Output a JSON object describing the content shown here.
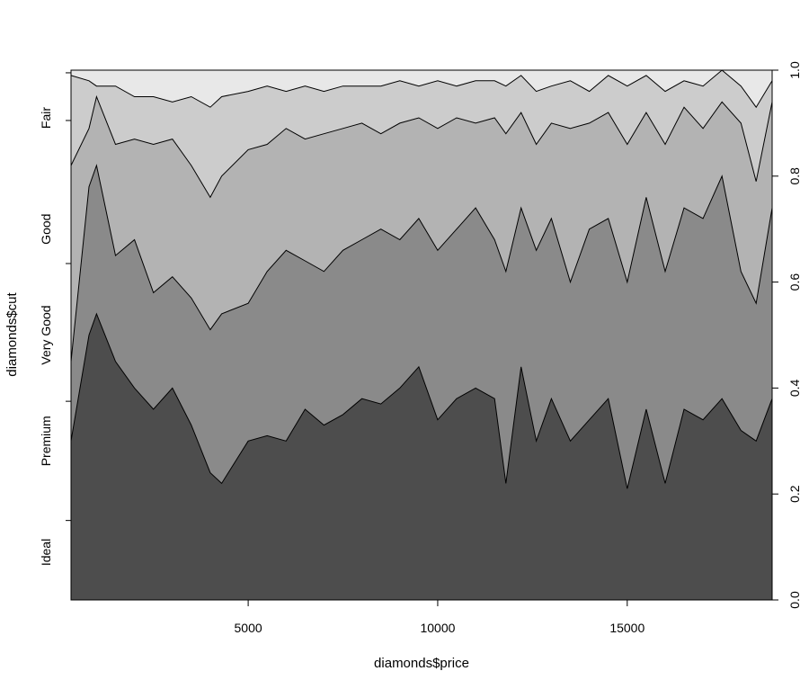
{
  "chart_data": {
    "type": "area",
    "subtype": "conditional-density-stacked",
    "title": "",
    "xlabel": "diamonds$price",
    "ylabel": "diamonds$cut",
    "xlim": [
      326,
      18823
    ],
    "ylim": [
      0,
      1
    ],
    "x_ticks": [
      5000,
      10000,
      15000
    ],
    "y_ticks": [
      0.0,
      0.2,
      0.4,
      0.6,
      0.8,
      1.0
    ],
    "y_tick_labels": [
      "0.0",
      "0.2",
      "0.4",
      "0.6",
      "0.8",
      "1.0"
    ],
    "category_labels": [
      "Ideal",
      "Premium",
      "Very Good",
      "Good",
      "Fair"
    ],
    "grid": false,
    "legend": "none",
    "x": [
      326,
      800,
      1000,
      1500,
      2000,
      2500,
      3000,
      3500,
      4000,
      4300,
      5000,
      5500,
      6000,
      6500,
      7000,
      7500,
      8000,
      8500,
      9000,
      9500,
      10000,
      10500,
      11000,
      11500,
      11800,
      12200,
      12600,
      13000,
      13500,
      14000,
      14500,
      15000,
      15500,
      16000,
      16500,
      17000,
      17500,
      18000,
      18400,
      18823
    ],
    "series": [
      {
        "name": "Ideal",
        "color": "#4d4d4d",
        "values": [
          0.3,
          0.5,
          0.54,
          0.45,
          0.4,
          0.36,
          0.4,
          0.33,
          0.24,
          0.22,
          0.3,
          0.31,
          0.3,
          0.36,
          0.33,
          0.35,
          0.38,
          0.37,
          0.4,
          0.44,
          0.34,
          0.38,
          0.4,
          0.38,
          0.22,
          0.44,
          0.3,
          0.38,
          0.3,
          0.34,
          0.38,
          0.21,
          0.36,
          0.22,
          0.36,
          0.34,
          0.38,
          0.32,
          0.3,
          0.38
        ]
      },
      {
        "name": "Premium",
        "color": "#8a8a8a",
        "values": [
          0.45,
          0.78,
          0.82,
          0.65,
          0.68,
          0.58,
          0.61,
          0.57,
          0.51,
          0.54,
          0.56,
          0.62,
          0.66,
          0.64,
          0.62,
          0.66,
          0.68,
          0.7,
          0.68,
          0.72,
          0.66,
          0.7,
          0.74,
          0.68,
          0.62,
          0.74,
          0.66,
          0.72,
          0.6,
          0.7,
          0.72,
          0.6,
          0.76,
          0.62,
          0.74,
          0.72,
          0.8,
          0.62,
          0.56,
          0.74
        ]
      },
      {
        "name": "Very Good",
        "color": "#b3b3b3",
        "values": [
          0.82,
          0.89,
          0.95,
          0.86,
          0.87,
          0.86,
          0.87,
          0.82,
          0.76,
          0.8,
          0.85,
          0.86,
          0.89,
          0.87,
          0.88,
          0.89,
          0.9,
          0.88,
          0.9,
          0.91,
          0.89,
          0.91,
          0.9,
          0.91,
          0.88,
          0.92,
          0.86,
          0.9,
          0.89,
          0.9,
          0.92,
          0.86,
          0.92,
          0.86,
          0.93,
          0.89,
          0.94,
          0.9,
          0.79,
          0.94
        ]
      },
      {
        "name": "Good",
        "color": "#cccccc",
        "values": [
          0.99,
          0.98,
          0.97,
          0.97,
          0.95,
          0.95,
          0.94,
          0.95,
          0.93,
          0.95,
          0.96,
          0.97,
          0.96,
          0.97,
          0.96,
          0.97,
          0.97,
          0.97,
          0.98,
          0.97,
          0.98,
          0.97,
          0.98,
          0.98,
          0.97,
          0.99,
          0.96,
          0.97,
          0.98,
          0.96,
          0.99,
          0.97,
          0.99,
          0.96,
          0.98,
          0.97,
          1.0,
          0.97,
          0.93,
          0.98
        ]
      },
      {
        "name": "Fair",
        "color": "#e8e8e8",
        "values": [
          1,
          1,
          1,
          1,
          1,
          1,
          1,
          1,
          1,
          1,
          1,
          1,
          1,
          1,
          1,
          1,
          1,
          1,
          1,
          1,
          1,
          1,
          1,
          1,
          1,
          1,
          1,
          1,
          1,
          1,
          1,
          1,
          1,
          1,
          1,
          1,
          1,
          1,
          1,
          1
        ]
      }
    ]
  }
}
